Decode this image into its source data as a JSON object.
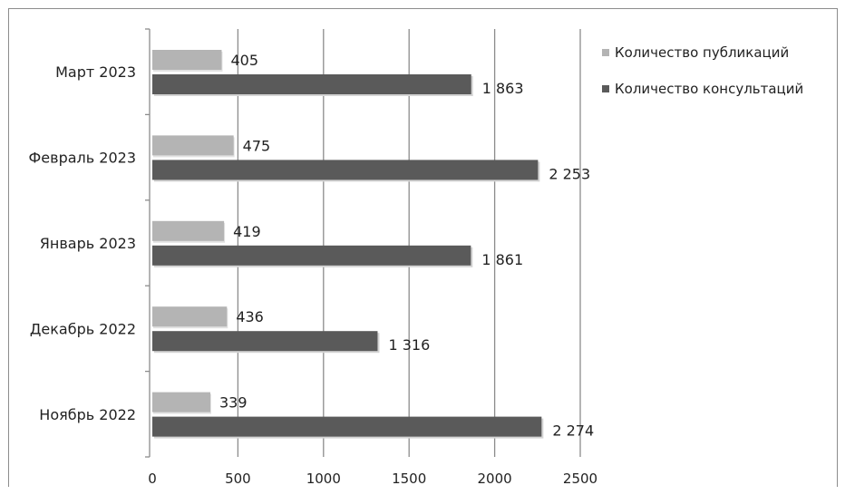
{
  "chart_data": {
    "type": "bar",
    "orientation": "horizontal",
    "categories": [
      "Ноябрь 2022",
      "Декабрь 2022",
      "Январь 2023",
      "Февраль 2023",
      "Март 2023"
    ],
    "series": [
      {
        "name": "Количество публикаций",
        "values": [
          339,
          436,
          419,
          475,
          405
        ],
        "labels": [
          "339",
          "436",
          "419",
          "475",
          "405"
        ],
        "color": "#b4b4b4"
      },
      {
        "name": "Количество консультаций",
        "values": [
          2274,
          1316,
          1861,
          2253,
          1863
        ],
        "labels": [
          "2 274",
          "1 316",
          "1 861",
          "2 253",
          "1 863"
        ],
        "color": "#5a5a5a"
      }
    ],
    "xticks": [
      "0",
      "500",
      "1000",
      "1500",
      "2000",
      "2500"
    ],
    "xlim": [
      0,
      2500
    ],
    "grid": "vertical",
    "legend_position": "top-right"
  }
}
